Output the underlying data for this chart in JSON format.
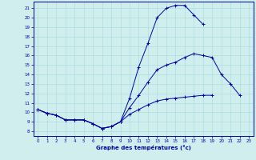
{
  "xlabel": "Graphe des températures (°c)",
  "bg_color": "#d0eeee",
  "line_color": "#0000aa",
  "grid_color": "#aadddd",
  "x_values": [
    0,
    1,
    2,
    3,
    4,
    5,
    6,
    7,
    8,
    9,
    10,
    11,
    12,
    13,
    14,
    15,
    16,
    17,
    18,
    19,
    20,
    21,
    22,
    23
  ],
  "line1_top": [
    10.3,
    9.9,
    9.7,
    9.2,
    9.2,
    9.2,
    8.8,
    8.3,
    8.5,
    9.0,
    11.5,
    14.8,
    17.3,
    20.0,
    21.0,
    21.3,
    21.3,
    20.3,
    19.3,
    null,
    null,
    null,
    null,
    null
  ],
  "line2_mid": [
    10.3,
    9.9,
    9.7,
    9.2,
    9.2,
    9.2,
    8.8,
    8.3,
    8.5,
    9.0,
    10.5,
    11.8,
    13.2,
    14.5,
    15.0,
    15.3,
    15.8,
    16.2,
    16.0,
    15.8,
    14.0,
    13.0,
    11.8,
    null
  ],
  "line3_bot": [
    10.3,
    9.9,
    9.7,
    9.2,
    9.2,
    9.2,
    8.8,
    8.3,
    8.5,
    9.0,
    9.8,
    10.3,
    10.8,
    11.2,
    11.4,
    11.5,
    11.6,
    11.7,
    11.8,
    11.8,
    null,
    null,
    null,
    null
  ],
  "ylim": [
    7.5,
    21.7
  ],
  "xlim": [
    -0.5,
    23.5
  ],
  "yticks": [
    8,
    9,
    10,
    11,
    12,
    13,
    14,
    15,
    16,
    17,
    18,
    19,
    20,
    21
  ],
  "xticks": [
    0,
    1,
    2,
    3,
    4,
    5,
    6,
    7,
    8,
    9,
    10,
    11,
    12,
    13,
    14,
    15,
    16,
    17,
    18,
    19,
    20,
    21,
    22,
    23
  ]
}
